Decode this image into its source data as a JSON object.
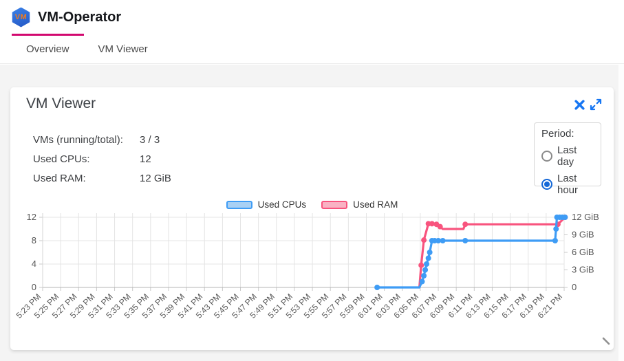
{
  "header": {
    "logo_text": "VM",
    "title": "VM-Operator"
  },
  "tabs": [
    {
      "label": "Overview",
      "active": true
    },
    {
      "label": "VM Viewer",
      "active": false
    }
  ],
  "card": {
    "title": "VM Viewer",
    "stats": [
      {
        "label": "VMs (running/total):",
        "value": "3 / 3"
      },
      {
        "label": "Used CPUs:",
        "value": "12"
      },
      {
        "label": "Used RAM:",
        "value": "12 GiB"
      }
    ],
    "period": {
      "label": "Period:",
      "options": [
        {
          "label": "Last day",
          "selected": false
        },
        {
          "label": "Last hour",
          "selected": true
        }
      ]
    }
  },
  "colors": {
    "accent": "#d2086f",
    "icon_blue": "#1676f3",
    "cpu_line": "#3e9cf5",
    "cpu_fill": "#a8d0f4",
    "ram_line": "#f8547e",
    "ram_fill": "#f9b2c3"
  },
  "chart_data": {
    "type": "line",
    "title": "",
    "xlabel": "",
    "ylabel_left": "",
    "ylabel_right": "",
    "grid": true,
    "legend_position": "top-center",
    "x_tick_labels": [
      "5:23 PM",
      "5:25 PM",
      "5:27 PM",
      "5:29 PM",
      "5:31 PM",
      "5:33 PM",
      "5:35 PM",
      "5:37 PM",
      "5:39 PM",
      "5:41 PM",
      "5:43 PM",
      "5:45 PM",
      "5:47 PM",
      "5:49 PM",
      "5:51 PM",
      "5:53 PM",
      "5:55 PM",
      "5:57 PM",
      "5:59 PM",
      "6:01 PM",
      "6:03 PM",
      "6:05 PM",
      "6:07 PM",
      "6:09 PM",
      "6:11 PM",
      "6:13 PM",
      "6:15 PM",
      "6:17 PM",
      "6:19 PM",
      "6:21 PM"
    ],
    "x_range_minutes": [
      0,
      58
    ],
    "left_axis": {
      "ticks": [
        0,
        4,
        8,
        12
      ],
      "range": [
        0,
        12
      ]
    },
    "right_axis": {
      "tick_labels": [
        "0",
        "3 GiB",
        "6 GiB",
        "9 GiB",
        "12 GiB"
      ],
      "tick_values": [
        0,
        3,
        6,
        9,
        12
      ],
      "range": [
        0,
        12
      ]
    },
    "legend": [
      {
        "label": "Used CPUs",
        "border": "#3e9cf5",
        "fill": "#a8d0f4"
      },
      {
        "label": "Used RAM",
        "border": "#f8547e",
        "fill": "#f9b2c3"
      }
    ],
    "series": [
      {
        "name": "Used RAM",
        "axis": "right",
        "color": "#f8547e",
        "points": [
          [
            41.9,
            0,
            0
          ],
          [
            42.1,
            3.8,
            1
          ],
          [
            42.4,
            8.1,
            1
          ],
          [
            42.9,
            10.9,
            1
          ],
          [
            43.3,
            10.9,
            1
          ],
          [
            43.8,
            10.8,
            1
          ],
          [
            44.2,
            10.4,
            1
          ],
          [
            44.5,
            10.0,
            0
          ],
          [
            46.8,
            10.0,
            0
          ],
          [
            47.0,
            10.8,
            1
          ],
          [
            57.3,
            10.8,
            1
          ],
          [
            58.1,
            12.0,
            1
          ]
        ]
      },
      {
        "name": "Used CPUs",
        "axis": "left",
        "color": "#3e9cf5",
        "points": [
          [
            37.2,
            0,
            1
          ],
          [
            41.9,
            0,
            0
          ],
          [
            42.2,
            1,
            1
          ],
          [
            42.4,
            2,
            1
          ],
          [
            42.55,
            3,
            1
          ],
          [
            42.7,
            4,
            1
          ],
          [
            42.9,
            5,
            1
          ],
          [
            43.05,
            6,
            1
          ],
          [
            43.3,
            8,
            1
          ],
          [
            43.6,
            8,
            1
          ],
          [
            44.0,
            8,
            1
          ],
          [
            44.5,
            8,
            1
          ],
          [
            47.0,
            8,
            1
          ],
          [
            57.0,
            8,
            1
          ],
          [
            57.1,
            10,
            1
          ],
          [
            57.2,
            12,
            1
          ],
          [
            57.5,
            12,
            1
          ],
          [
            57.8,
            12,
            1
          ],
          [
            58.1,
            12,
            1
          ]
        ]
      }
    ]
  }
}
